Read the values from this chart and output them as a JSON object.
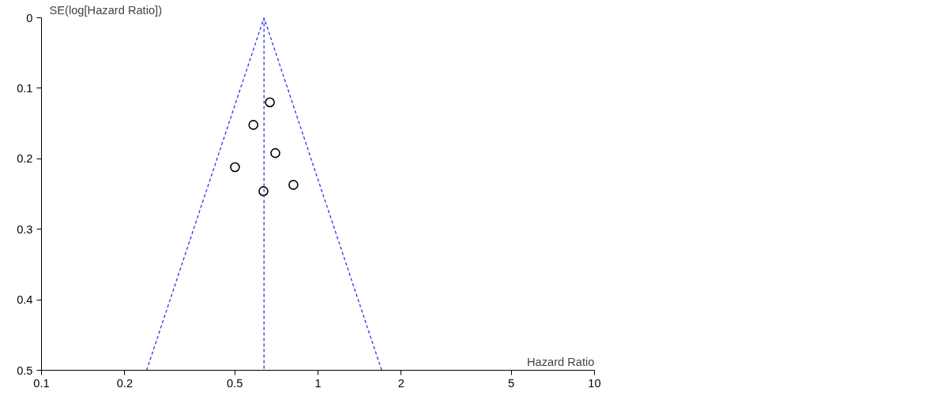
{
  "chart_data": {
    "type": "scatter",
    "xlabel": "Hazard Ratio",
    "ylabel": "SE(log[Hazard Ratio])",
    "log": "x",
    "xlim": [
      0.1,
      10
    ],
    "xticks": [
      0.1,
      0.2,
      0.5,
      1,
      2,
      5,
      10
    ],
    "ylim": [
      0.5,
      0
    ],
    "yticks": [
      0,
      0.1,
      0.2,
      0.3,
      0.4,
      0.5
    ],
    "grid": false,
    "marker": "circle",
    "series": [
      {
        "color": "#000000",
        "x": [
          0.67,
          0.584,
          0.701,
          0.501,
          0.815,
          0.635
        ],
        "values": [
          0.12,
          0.152,
          0.192,
          0.212,
          0.237,
          0.246
        ]
      },
      {
        "type": "line",
        "marker": "none",
        "color": "#3333dd",
        "line_style": "dashed",
        "x": [
          0.24,
          0.638,
          1.7
        ],
        "values": [
          0.5,
          0,
          0.5
        ]
      }
    ],
    "ref_lines": [
      {
        "axis": "x",
        "value": 0.638,
        "color": "#3333dd",
        "line_style": "dashed"
      }
    ]
  }
}
